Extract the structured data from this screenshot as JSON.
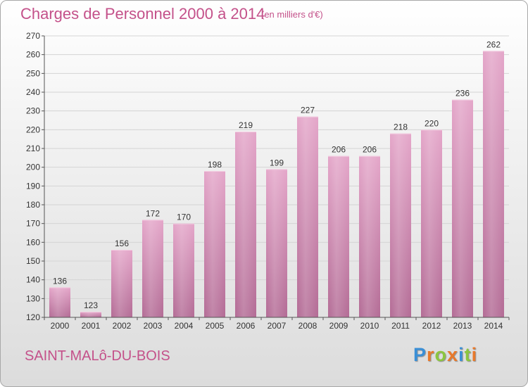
{
  "chart_data": {
    "type": "bar",
    "title": "Charges de Personnel 2000 à 2014",
    "subtitle": "(en milliers d'€)",
    "categories": [
      "2000",
      "2001",
      "2002",
      "2003",
      "2004",
      "2005",
      "2006",
      "2007",
      "2008",
      "2009",
      "2010",
      "2011",
      "2012",
      "2013",
      "2014"
    ],
    "values": [
      136,
      123,
      156,
      172,
      170,
      198,
      219,
      199,
      227,
      206,
      206,
      218,
      220,
      236,
      262
    ],
    "ylim": [
      120,
      270
    ],
    "yticks": [
      120,
      130,
      140,
      150,
      160,
      170,
      180,
      190,
      200,
      210,
      220,
      230,
      240,
      250,
      260,
      270
    ],
    "grid": true,
    "bar_color": "#d98cb6",
    "legend": "none"
  },
  "commune": "SAINT-MALô-DU-BOIS",
  "brand": {
    "letters": [
      "P",
      "r",
      "o",
      "x",
      "i",
      "t",
      "i"
    ],
    "colors": [
      "#3a8fd6",
      "#e8792b",
      "#8cc63f",
      "#e8792b",
      "#3a8fd6",
      "#8cc63f",
      "#e8792b"
    ]
  },
  "colors": {
    "accent": "#c4518a",
    "grid": "#d4d4d4"
  }
}
